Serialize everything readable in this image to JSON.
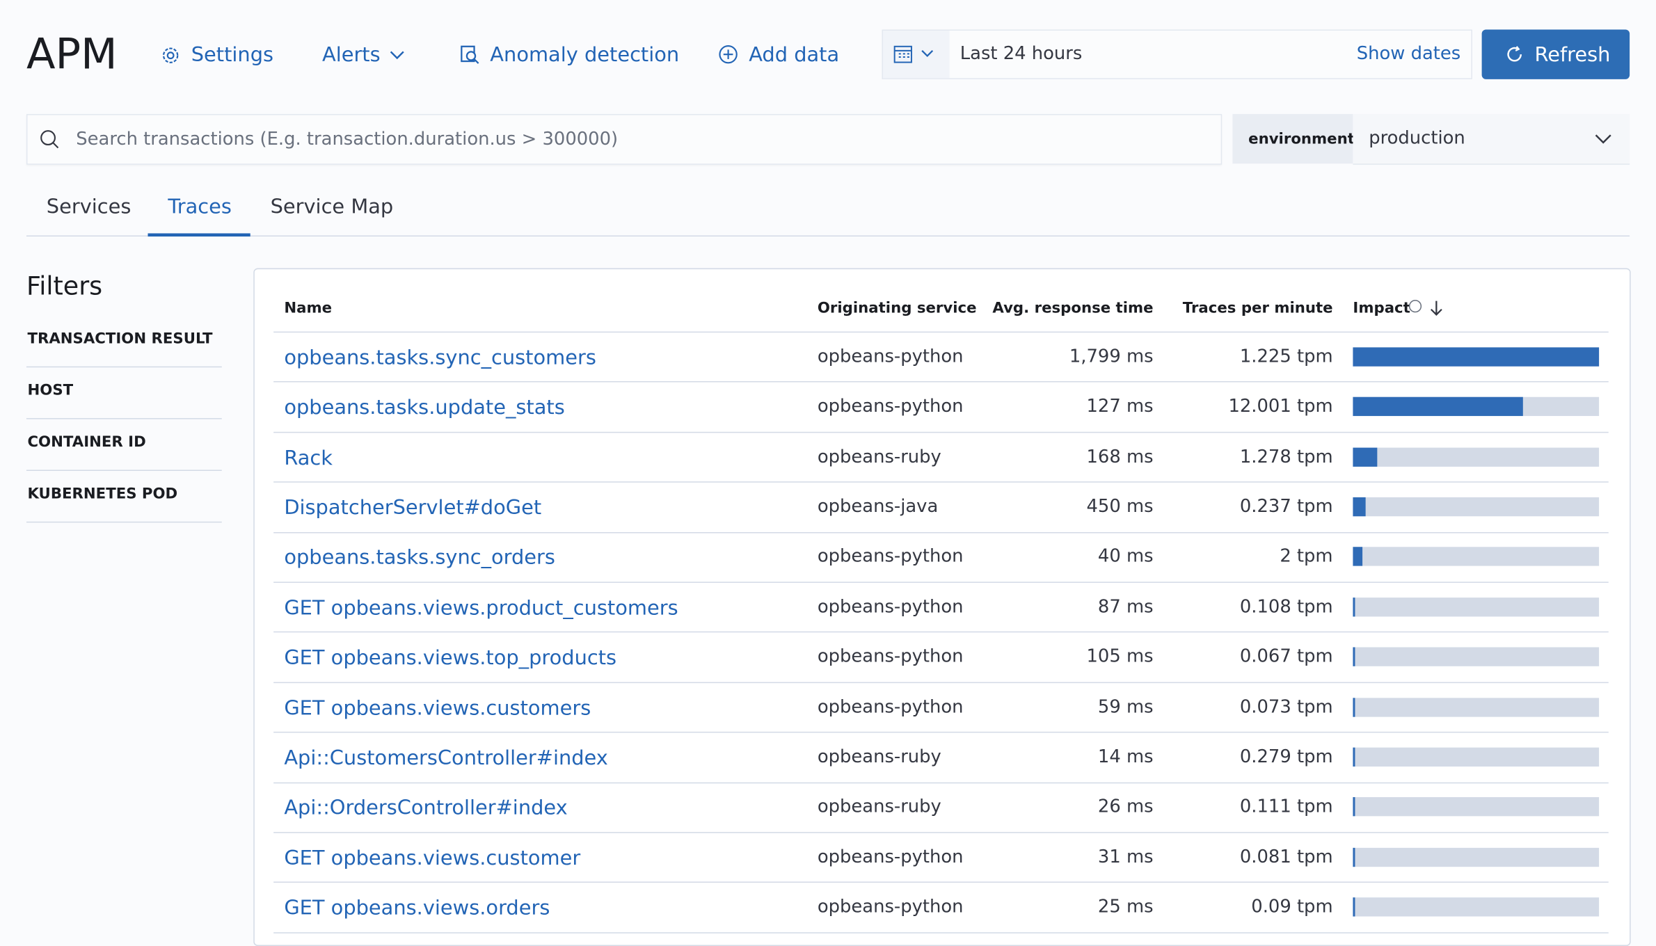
{
  "header": {
    "title": "APM",
    "nav": [
      "Settings",
      "Alerts",
      "Anomaly detection",
      "Add data"
    ],
    "date_range": "Last 24 hours",
    "show_dates": "Show dates",
    "refresh": "Refresh"
  },
  "search": {
    "placeholder": "Search transactions (E.g. transaction.duration.us > 300000)",
    "environment_label": "environment",
    "environment_value": "production"
  },
  "tabs": {
    "items": [
      "Services",
      "Traces",
      "Service Map"
    ],
    "active": 1
  },
  "filters": {
    "title": "Filters",
    "items": [
      "TRANSACTION RESULT",
      "HOST",
      "CONTAINER ID",
      "KUBERNETES POD"
    ]
  },
  "table": {
    "columns": [
      "Name",
      "Originating service",
      "Avg. response time",
      "Traces per minute",
      "Impact"
    ],
    "rows": [
      {
        "name": "opbeans.tasks.sync_customers",
        "service": "opbeans-python",
        "avg": "1,799 ms",
        "tpm": "1.225 tpm",
        "impact": 100
      },
      {
        "name": "opbeans.tasks.update_stats",
        "service": "opbeans-python",
        "avg": "127 ms",
        "tpm": "12.001 tpm",
        "impact": 69
      },
      {
        "name": "Rack",
        "service": "opbeans-ruby",
        "avg": "168 ms",
        "tpm": "1.278 tpm",
        "impact": 10
      },
      {
        "name": "DispatcherServlet#doGet",
        "service": "opbeans-java",
        "avg": "450 ms",
        "tpm": "0.237 tpm",
        "impact": 5
      },
      {
        "name": "opbeans.tasks.sync_orders",
        "service": "opbeans-python",
        "avg": "40 ms",
        "tpm": "2 tpm",
        "impact": 4
      },
      {
        "name": "GET opbeans.views.product_customers",
        "service": "opbeans-python",
        "avg": "87 ms",
        "tpm": "0.108 tpm",
        "impact": 1
      },
      {
        "name": "GET opbeans.views.top_products",
        "service": "opbeans-python",
        "avg": "105 ms",
        "tpm": "0.067 tpm",
        "impact": 1
      },
      {
        "name": "GET opbeans.views.customers",
        "service": "opbeans-python",
        "avg": "59 ms",
        "tpm": "0.073 tpm",
        "impact": 1
      },
      {
        "name": "Api::CustomersController#index",
        "service": "opbeans-ruby",
        "avg": "14 ms",
        "tpm": "0.279 tpm",
        "impact": 1
      },
      {
        "name": "Api::OrdersController#index",
        "service": "opbeans-ruby",
        "avg": "26 ms",
        "tpm": "0.111 tpm",
        "impact": 1
      },
      {
        "name": "GET opbeans.views.customer",
        "service": "opbeans-python",
        "avg": "31 ms",
        "tpm": "0.081 tpm",
        "impact": 1
      },
      {
        "name": "GET opbeans.views.orders",
        "service": "opbeans-python",
        "avg": "25 ms",
        "tpm": "0.09 tpm",
        "impact": 1
      }
    ]
  }
}
